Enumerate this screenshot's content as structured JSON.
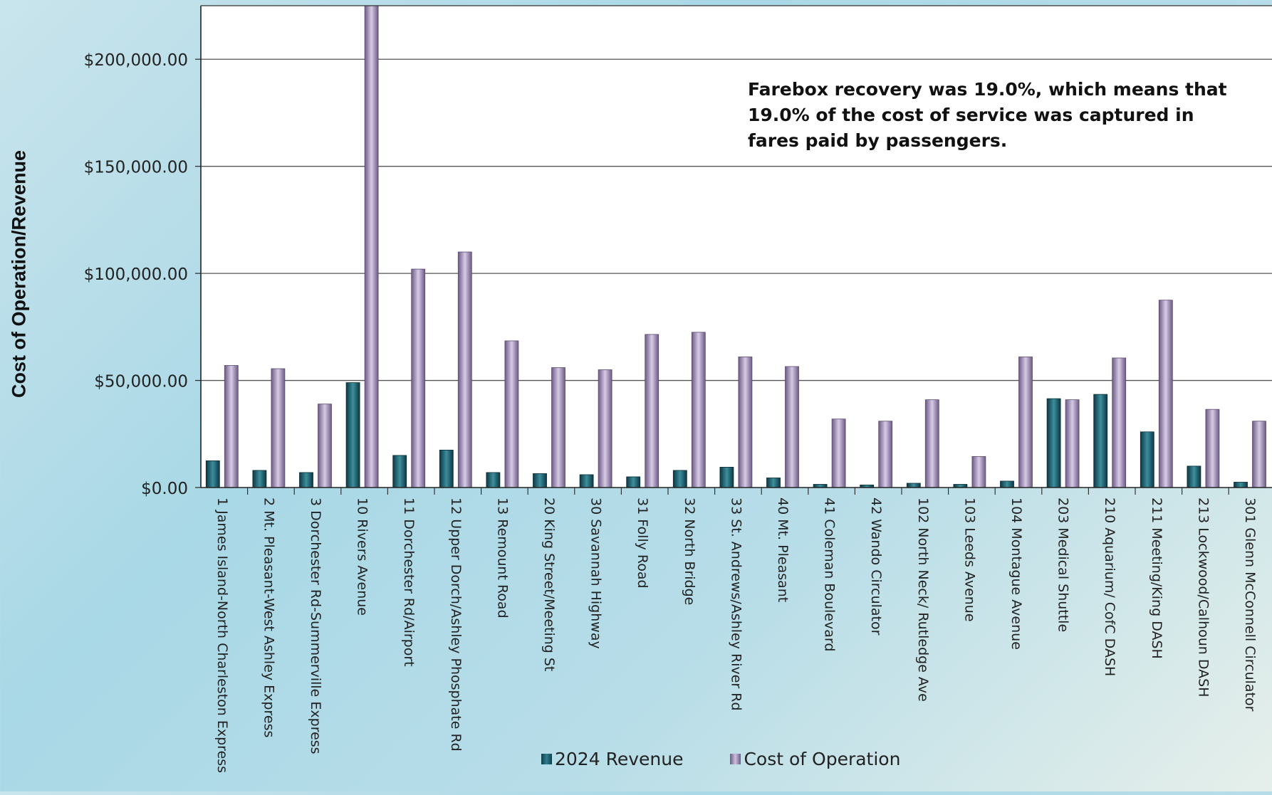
{
  "chart_data": {
    "type": "bar",
    "ylabel": "Cost of Operation/Revenue",
    "ylim": [
      0,
      225000
    ],
    "yticks": [
      {
        "value": 0,
        "label": "$0.00"
      },
      {
        "value": 50000,
        "label": "$50,000.00"
      },
      {
        "value": 100000,
        "label": "$100,000.00"
      },
      {
        "value": 150000,
        "label": "$150,000.00"
      },
      {
        "value": 200000,
        "label": "$200,000.00"
      }
    ],
    "grid": true,
    "legend_position": "bottom",
    "annotation": "Farebox recovery was 19.0%, which means that 19.0% of the cost of service was captured in fares paid by passengers.",
    "categories": [
      "1 James Island-North Charleston Express",
      "2 Mt. Pleasant-West Ashley Express",
      "3 Dorchester Rd-Summerville Express",
      "10 Rivers Avenue",
      "11 Dorchester Rd/Airport",
      "12 Upper Dorch/Ashley Phosphate Rd",
      "13 Remount Road",
      "20 King Street/Meeting St",
      "30 Savannah Highway",
      "31 Folly Road",
      "32 North Bridge",
      "33 St. Andrews/Ashley River Rd",
      "40 Mt. Pleasant",
      "41 Coleman Boulevard",
      "42 Wando Circulator",
      "102 North Neck/ Rutledge Ave",
      "103 Leeds Avenue",
      "104 Montague Avenue",
      "203 Medical Shuttle",
      "210 Aquarium/ CofC DASH",
      "211 Meeting/King DASH",
      "213 Lockwood/Calhoun DASH",
      "301 Glenn McConnell Circulator"
    ],
    "series": [
      {
        "name": "2024 Revenue",
        "color": "#1f6572",
        "values": [
          12500,
          8000,
          7000,
          49000,
          15000,
          17500,
          7000,
          6500,
          6000,
          5000,
          8000,
          9500,
          4500,
          1500,
          1200,
          2000,
          1500,
          3000,
          41500,
          43500,
          26000,
          10000,
          2500
        ]
      },
      {
        "name": "Cost of Operation",
        "color": "#a895c3",
        "values": [
          57000,
          55500,
          39000,
          226000,
          102000,
          110000,
          68500,
          56000,
          55000,
          71500,
          72500,
          61000,
          56500,
          32000,
          31000,
          41000,
          14500,
          61000,
          41000,
          60500,
          87500,
          36500,
          31000
        ]
      }
    ]
  }
}
